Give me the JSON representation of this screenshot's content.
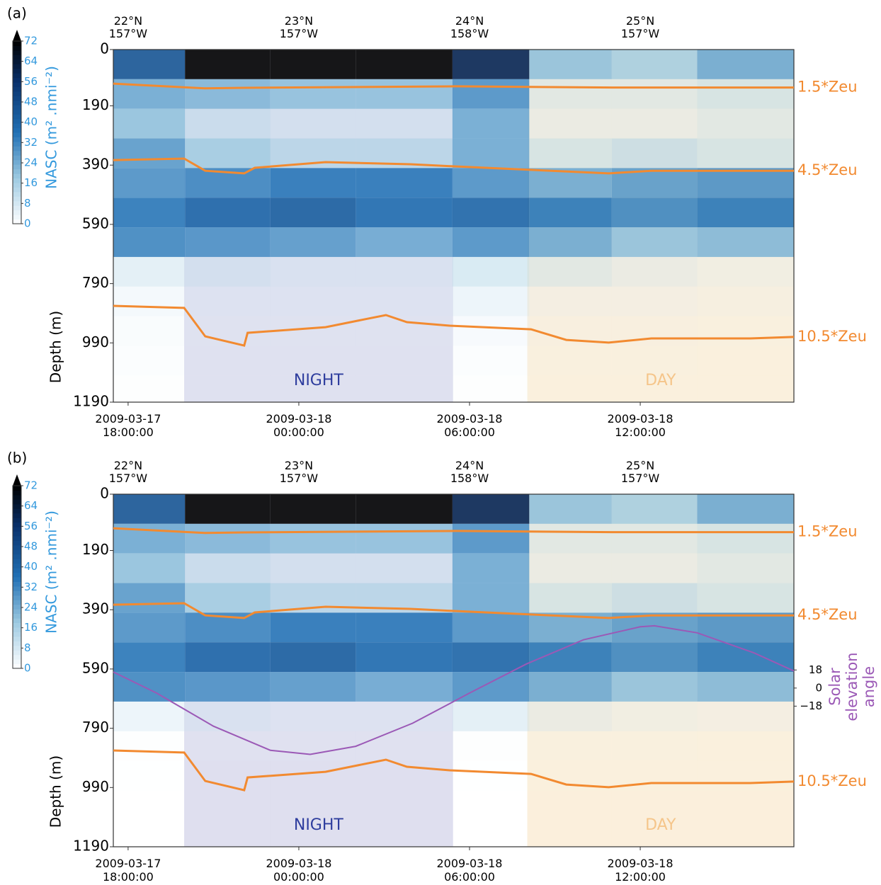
{
  "chart_data": [
    {
      "type": "echogram",
      "panel": "(a)",
      "colorbar_label": "NASC (m² .nmi⁻²)",
      "clim": [
        0,
        72
      ],
      "cticks": [
        0,
        8,
        16,
        24,
        32,
        40,
        48,
        56,
        64,
        72
      ],
      "ylabel": "Depth (m)",
      "ylim": [
        0,
        1190
      ],
      "yticks": [
        0,
        190,
        390,
        590,
        790,
        990,
        1190
      ],
      "xlim": [
        17.48,
        41.4
      ],
      "xticks": [
        {
          "value": 18,
          "label": "2009-03-17 18:00:00"
        },
        {
          "value": 24,
          "label": "2009-03-18 00:00:00"
        },
        {
          "value": 30,
          "label": "2009-03-18 06:00:00"
        },
        {
          "value": 36,
          "label": "2009-03-18 12:00:00"
        }
      ],
      "top_labels": [
        "22°N 157°W",
        "23°N 157°W",
        "24°N 158°W",
        "25°N 157°W"
      ],
      "night": {
        "label": "NIGHT",
        "range": [
          19.97,
          29.42
        ],
        "color": "#dcdcee"
      },
      "day": {
        "label": "DAY",
        "range": [
          32.03,
          41.4
        ],
        "color": "#fbeed8"
      },
      "xbins": [
        17.48,
        20,
        23,
        26,
        29.4,
        32.1,
        35,
        38,
        41.4
      ],
      "ybins": [
        0,
        100,
        200,
        300,
        400,
        500,
        600,
        700,
        800,
        900,
        1000,
        1100,
        1190
      ],
      "z": [
        [
          45,
          72,
          72,
          72,
          60,
          20,
          18,
          25
        ],
        [
          25,
          22,
          20,
          20,
          30,
          10,
          10,
          12
        ],
        [
          20,
          12,
          10,
          10,
          25,
          8,
          8,
          10
        ],
        [
          28,
          18,
          15,
          15,
          25,
          12,
          14,
          12
        ],
        [
          30,
          32,
          35,
          35,
          30,
          25,
          28,
          30
        ],
        [
          35,
          40,
          42,
          38,
          40,
          35,
          32,
          35
        ],
        [
          32,
          30,
          28,
          25,
          30,
          25,
          20,
          22
        ],
        [
          10,
          10,
          8,
          8,
          12,
          10,
          8,
          6
        ],
        [
          6,
          6,
          6,
          6,
          8,
          5,
          5,
          4
        ],
        [
          4,
          4,
          4,
          4,
          5,
          3,
          3,
          2
        ],
        [
          3,
          3,
          3,
          3,
          3,
          2,
          2,
          1
        ],
        [
          2,
          3,
          3,
          3,
          2,
          1,
          1,
          1
        ]
      ],
      "series": [
        {
          "name": "1.5*Zeu",
          "color": "#f28a30",
          "x": [
            17.48,
            20.7,
            22.1,
            29.5,
            35,
            41.4
          ],
          "values": [
            115,
            131,
            129,
            124,
            128,
            128
          ]
        },
        {
          "name": "4.5*Zeu",
          "color": "#f28a30",
          "x": [
            17.48,
            19.97,
            20.71,
            22.08,
            22.45,
            24.94,
            27.93,
            29.42,
            34.89,
            36.39,
            41.4
          ],
          "values": [
            373,
            368,
            409,
            418,
            399,
            380,
            387,
            394,
            418,
            409,
            409
          ]
        },
        {
          "name": "10.5*Zeu",
          "color": "#f28a30",
          "x": [
            17.48,
            19.97,
            20.71,
            22.08,
            22.2,
            24.94,
            27.06,
            27.8,
            29.3,
            32.16,
            33.4,
            34.89,
            36.39,
            39.87,
            41.4
          ],
          "values": [
            865,
            872,
            968,
            999,
            956,
            937,
            896,
            920,
            932,
            944,
            980,
            989,
            975,
            975,
            970
          ]
        }
      ]
    },
    {
      "type": "echogram",
      "panel": "(b)",
      "colorbar_label": "NASC (m² .nmi⁻²)",
      "clim": [
        0,
        72
      ],
      "cticks": [
        0,
        8,
        16,
        24,
        32,
        40,
        48,
        56,
        64,
        72
      ],
      "ylabel": "Depth (m)",
      "ylim": [
        0,
        1190
      ],
      "yticks": [
        0,
        190,
        390,
        590,
        790,
        990,
        1190
      ],
      "xlim": [
        17.48,
        41.4
      ],
      "xticks": [
        {
          "value": 18,
          "label": "2009-03-17 18:00:00"
        },
        {
          "value": 24,
          "label": "2009-03-18 00:00:00"
        },
        {
          "value": 30,
          "label": "2009-03-18 06:00:00"
        },
        {
          "value": 36,
          "label": "2009-03-18 12:00:00"
        }
      ],
      "top_labels": [
        "22°N 157°W",
        "23°N 157°W",
        "24°N 158°W",
        "25°N 157°W"
      ],
      "night": {
        "label": "NIGHT",
        "range": [
          19.97,
          29.42
        ],
        "color": "#dcdcee"
      },
      "day": {
        "label": "DAY",
        "range": [
          32.03,
          41.4
        ],
        "color": "#fbeed8"
      },
      "xbins": [
        17.48,
        20,
        23,
        26,
        29.4,
        32.1,
        35,
        38,
        41.4
      ],
      "ybins": [
        0,
        100,
        200,
        300,
        400,
        500,
        600,
        700,
        800,
        900,
        1000,
        1100,
        1190
      ],
      "z": [
        [
          45,
          72,
          72,
          72,
          60,
          20,
          18,
          25
        ],
        [
          25,
          22,
          20,
          20,
          30,
          10,
          10,
          12
        ],
        [
          20,
          12,
          10,
          10,
          25,
          8,
          8,
          10
        ],
        [
          28,
          18,
          15,
          15,
          25,
          12,
          14,
          12
        ],
        [
          30,
          32,
          35,
          35,
          30,
          25,
          28,
          30
        ],
        [
          35,
          40,
          42,
          38,
          40,
          35,
          32,
          35
        ],
        [
          32,
          30,
          28,
          25,
          30,
          25,
          20,
          22
        ],
        [
          8,
          8,
          6,
          6,
          10,
          8,
          6,
          5
        ],
        [
          2,
          1,
          1,
          1,
          2,
          2,
          2,
          1
        ],
        [
          1,
          0,
          0,
          0,
          1,
          1,
          1,
          1
        ],
        [
          0,
          0,
          0,
          0,
          0,
          0,
          0,
          0
        ],
        [
          0,
          0,
          0,
          0,
          0,
          0,
          0,
          0
        ]
      ],
      "y2label": "Solar elevation angle",
      "y2lim": [
        -158,
        193
      ],
      "y2ticks": [
        18,
        0,
        {
          "value": -18,
          "label": "−18"
        }
      ],
      "series": [
        {
          "name": "1.5*Zeu",
          "color": "#f28a30",
          "x": [
            17.48,
            20.7,
            22.1,
            29.5,
            35,
            41.4
          ],
          "values": [
            115,
            131,
            129,
            124,
            128,
            128
          ]
        },
        {
          "name": "4.5*Zeu",
          "color": "#f28a30",
          "x": [
            17.48,
            19.97,
            20.71,
            22.08,
            22.45,
            24.94,
            27.93,
            29.42,
            34.89,
            36.39,
            41.4
          ],
          "values": [
            373,
            368,
            409,
            418,
            399,
            380,
            387,
            394,
            418,
            409,
            409
          ]
        },
        {
          "name": "10.5*Zeu",
          "color": "#f28a30",
          "x": [
            17.48,
            19.97,
            20.71,
            22.08,
            22.2,
            24.94,
            27.06,
            27.8,
            29.3,
            32.16,
            33.4,
            34.89,
            36.39,
            39.87,
            41.4
          ],
          "values": [
            865,
            872,
            968,
            999,
            956,
            937,
            896,
            920,
            932,
            944,
            980,
            989,
            975,
            975,
            970
          ]
        },
        {
          "name": "Solar elevation angle",
          "color": "#9b59b6",
          "axis": "y2",
          "x": [
            17.48,
            19,
            21,
            23,
            24.4,
            26,
            28,
            30,
            32,
            34,
            36,
            36.5,
            38,
            40,
            41.4
          ],
          "values": [
            16,
            -5,
            -38,
            -62,
            -66,
            -58,
            -35,
            -5,
            24,
            48,
            61,
            62,
            55,
            35,
            17
          ]
        }
      ]
    }
  ]
}
